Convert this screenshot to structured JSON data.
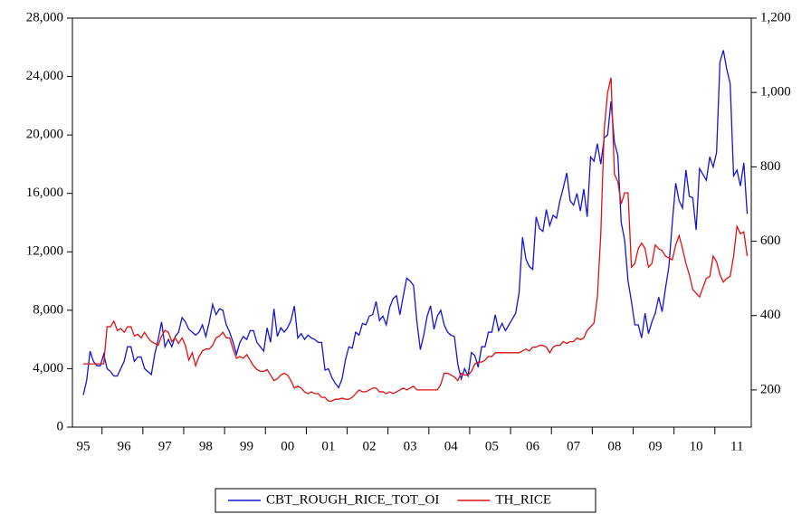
{
  "chart_data": {
    "type": "line",
    "categories": [
      "95",
      null,
      null,
      null,
      null,
      null,
      null,
      null,
      null,
      null,
      null,
      null,
      "96",
      null,
      null,
      null,
      null,
      null,
      null,
      null,
      null,
      null,
      null,
      null,
      "97",
      null,
      null,
      null,
      null,
      null,
      null,
      null,
      null,
      null,
      null,
      null,
      "98",
      null,
      null,
      null,
      null,
      null,
      null,
      null,
      null,
      null,
      null,
      null,
      "99",
      null,
      null,
      null,
      null,
      null,
      null,
      null,
      null,
      null,
      null,
      null,
      "00",
      null,
      null,
      null,
      null,
      null,
      null,
      null,
      null,
      null,
      null,
      null,
      "01",
      null,
      null,
      null,
      null,
      null,
      null,
      null,
      null,
      null,
      null,
      null,
      "02",
      null,
      null,
      null,
      null,
      null,
      null,
      null,
      null,
      null,
      null,
      null,
      "03",
      null,
      null,
      null,
      null,
      null,
      null,
      null,
      null,
      null,
      null,
      null,
      "04",
      null,
      null,
      null,
      null,
      null,
      null,
      null,
      null,
      null,
      null,
      null,
      "05",
      null,
      null,
      null,
      null,
      null,
      null,
      null,
      null,
      null,
      null,
      null,
      "06",
      null,
      null,
      null,
      null,
      null,
      null,
      null,
      null,
      null,
      null,
      null,
      "07",
      null,
      null,
      null,
      null,
      null,
      null,
      null,
      null,
      null,
      null,
      null,
      "08",
      null,
      null,
      null,
      null,
      null,
      null,
      null,
      null,
      null,
      null,
      null,
      "09",
      null,
      null,
      null,
      null,
      null,
      null,
      null,
      null,
      null,
      null,
      null,
      "10",
      null,
      null,
      null,
      null,
      null,
      null,
      null,
      null,
      null,
      null,
      null,
      "11",
      null,
      null,
      null
    ],
    "series": [
      {
        "name": "CBT_ROUGH_RICE_TOT_OI",
        "color": "#1414d4",
        "values": [
          2200,
          3200,
          5200,
          4500,
          4200,
          4200,
          5000,
          4000,
          3800,
          3500,
          3500,
          4000,
          4500,
          5500,
          5500,
          4500,
          4800,
          4800,
          4000,
          3800,
          3600,
          5000,
          6000,
          7200,
          5500,
          6000,
          5500,
          6200,
          6500,
          7500,
          7200,
          6700,
          6500,
          6300,
          6500,
          7000,
          6200,
          7200,
          8400,
          7700,
          8100,
          8000,
          7000,
          6500,
          5800,
          5000,
          5800,
          6200,
          6000,
          6600,
          6600,
          5800,
          5500,
          5200,
          6800,
          5800,
          8100,
          6200,
          6800,
          6500,
          6800,
          7300,
          8300,
          6100,
          6400,
          6000,
          6300,
          6100,
          6000,
          5800,
          5800,
          3900,
          4000,
          3400,
          3000,
          2700,
          3300,
          4600,
          5500,
          5400,
          6500,
          6300,
          7100,
          7000,
          7600,
          7700,
          8600,
          7300,
          7600,
          7000,
          8200,
          8800,
          9000,
          7700,
          9000,
          10200,
          10000,
          9700,
          7200,
          5300,
          6300,
          7600,
          8300,
          6700,
          7600,
          8000,
          7000,
          6500,
          6300,
          6200,
          4300,
          3300,
          4000,
          3500,
          5100,
          4900,
          4100,
          5500,
          5500,
          6500,
          6500,
          7700,
          6600,
          7100,
          6600,
          7000,
          7400,
          7800,
          9200,
          13000,
          11500,
          11000,
          10800,
          14400,
          13600,
          13400,
          14900,
          13800,
          14500,
          14300,
          15500,
          16400,
          17400,
          15500,
          15200,
          16000,
          14800,
          16300,
          14400,
          18500,
          18200,
          19400,
          18000,
          19800,
          20000,
          22300,
          19500,
          18600,
          14000,
          12800,
          10000,
          8600,
          7000,
          7000,
          6100,
          7800,
          6400,
          7200,
          7800,
          8900,
          7900,
          9500,
          11000,
          14000,
          16700,
          15500,
          15000,
          17600,
          15800,
          15700,
          13500,
          17700,
          17300,
          16900,
          18500,
          17800,
          18800,
          25000,
          25800,
          24500,
          23500,
          17200,
          17600,
          16500,
          18100,
          14600
        ]
      },
      {
        "name": "TH_RICE",
        "color": "#e01010",
        "axis": "y2",
        "values": [
          270,
          270,
          270,
          270,
          270,
          270,
          270,
          370,
          370,
          385,
          360,
          365,
          355,
          370,
          370,
          345,
          350,
          340,
          355,
          340,
          330,
          325,
          320,
          345,
          360,
          355,
          330,
          340,
          325,
          340,
          320,
          280,
          300,
          265,
          290,
          305,
          310,
          310,
          320,
          340,
          345,
          355,
          340,
          340,
          310,
          285,
          290,
          285,
          295,
          280,
          265,
          255,
          250,
          250,
          255,
          240,
          225,
          230,
          240,
          245,
          240,
          225,
          205,
          210,
          205,
          195,
          190,
          195,
          190,
          190,
          180,
          180,
          170,
          170,
          175,
          175,
          178,
          175,
          175,
          180,
          190,
          200,
          195,
          195,
          200,
          205,
          205,
          195,
          195,
          190,
          195,
          190,
          195,
          200,
          205,
          200,
          205,
          210,
          200,
          200,
          200,
          200,
          200,
          200,
          200,
          215,
          245,
          245,
          240,
          235,
          225,
          245,
          240,
          240,
          250,
          270,
          275,
          275,
          280,
          290,
          290,
          300,
          300,
          300,
          300,
          300,
          300,
          300,
          300,
          305,
          310,
          305,
          315,
          315,
          320,
          320,
          315,
          300,
          315,
          320,
          320,
          330,
          325,
          330,
          330,
          340,
          335,
          340,
          360,
          370,
          380,
          450,
          620,
          900,
          1000,
          1040,
          780,
          760,
          700,
          730,
          730,
          530,
          540,
          580,
          595,
          580,
          530,
          540,
          590,
          580,
          575,
          560,
          555,
          550,
          590,
          615,
          580,
          540,
          510,
          470,
          460,
          450,
          475,
          500,
          505,
          560,
          545,
          510,
          490,
          500,
          505,
          560,
          640,
          620,
          625,
          560
        ]
      }
    ],
    "ylim": [
      0,
      28000
    ],
    "yticks": [
      0,
      {
        "value": 4000,
        "label": "4,000"
      },
      {
        "value": 8000,
        "label": "8,000"
      },
      {
        "value": 12000,
        "label": "12,000"
      },
      {
        "value": 16000,
        "label": "16,000"
      },
      {
        "value": 20000,
        "label": "20,000"
      },
      {
        "value": 24000,
        "label": "24,000"
      },
      {
        "value": 28000,
        "label": "28,000"
      }
    ],
    "y2lim": [
      100,
      1200
    ],
    "y2ticks": [
      200,
      400,
      600,
      800,
      {
        "value": 1000,
        "label": "1,000"
      },
      {
        "value": 1200,
        "label": "1,200"
      }
    ],
    "grid": false,
    "legend": "bottom"
  }
}
